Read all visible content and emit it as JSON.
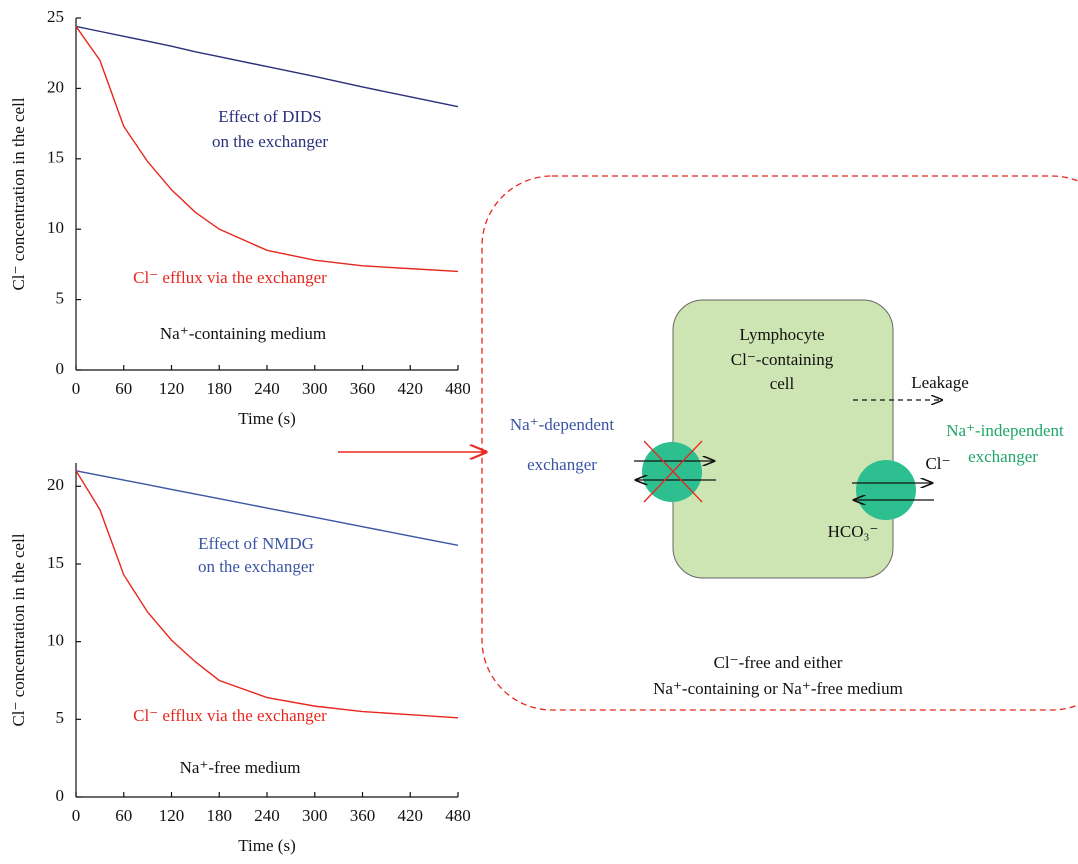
{
  "chart_data": [
    {
      "type": "line",
      "y_label": "Cl⁻ concentration in the cell",
      "x_label": "Time (s)",
      "xlim": [
        0,
        480
      ],
      "xticks": [
        0,
        60,
        120,
        180,
        240,
        300,
        360,
        420,
        480
      ],
      "ylim": [
        0,
        25
      ],
      "yticks": [
        0,
        5,
        10,
        15,
        20,
        25
      ],
      "x": [
        0,
        30,
        60,
        90,
        120,
        150,
        180,
        240,
        300,
        360,
        420,
        480
      ],
      "series": [
        {
          "color": "#2b2f7a",
          "values": [
            24.4,
            24.05,
            23.7,
            23.35,
            23.0,
            22.6,
            22.25,
            21.55,
            20.85,
            20.1,
            19.4,
            18.7
          ]
        },
        {
          "color": "#e8281e",
          "values": [
            24.4,
            22.0,
            17.3,
            14.8,
            12.8,
            11.2,
            10.0,
            8.5,
            7.8,
            7.4,
            7.2,
            7.0
          ]
        }
      ],
      "annotations": [
        {
          "text": "Effect of DIDS",
          "color": "#2b2f7a"
        },
        {
          "text": "on the exchanger",
          "color": "#2b2f7a"
        },
        {
          "text": "Cl⁻ efflux via the exchanger",
          "color": "#e8281e"
        },
        {
          "text": "Na⁺-containing medium",
          "color": "#111111"
        }
      ]
    },
    {
      "type": "line",
      "y_label": "Cl⁻ concentration in the cell",
      "x_label": "Time (s)",
      "xlim": [
        0,
        480
      ],
      "xticks": [
        0,
        60,
        120,
        180,
        240,
        300,
        360,
        420,
        480
      ],
      "ylim": [
        0,
        21.5
      ],
      "yticks": [
        0,
        5,
        10,
        15,
        20
      ],
      "x": [
        0,
        30,
        60,
        90,
        120,
        150,
        180,
        240,
        300,
        360,
        420,
        480
      ],
      "series": [
        {
          "color": "#3a55a4",
          "values": [
            21.0,
            20.7,
            20.4,
            20.1,
            19.8,
            19.5,
            19.2,
            18.6,
            18.0,
            17.4,
            16.8,
            16.2
          ]
        },
        {
          "color": "#e8281e",
          "values": [
            21.0,
            18.5,
            14.3,
            11.9,
            10.1,
            8.7,
            7.5,
            6.4,
            5.85,
            5.5,
            5.3,
            5.1
          ]
        }
      ],
      "annotations": [
        {
          "text": "Effect of NMDG",
          "color": "#3a55a4"
        },
        {
          "text": "on the exchanger",
          "color": "#3a55a4"
        },
        {
          "text": "Cl⁻ efflux via the exchanger",
          "color": "#e8281e"
        },
        {
          "text": "Na⁺-free medium",
          "color": "#111111"
        }
      ]
    }
  ],
  "diagram": {
    "cell_label": [
      "Lymphocyte",
      "Cl⁻-containing",
      "cell"
    ],
    "leakage": "Leakage",
    "left_exchanger": [
      "Na⁺-dependent",
      "exchanger"
    ],
    "right_exchanger": [
      "Na⁺-independent",
      "exchanger"
    ],
    "ions": [
      "Cl⁻",
      "HCO₃⁻"
    ],
    "medium": [
      "Cl⁻-free and either",
      "Na⁺-containing or Na⁺-free medium"
    ]
  }
}
